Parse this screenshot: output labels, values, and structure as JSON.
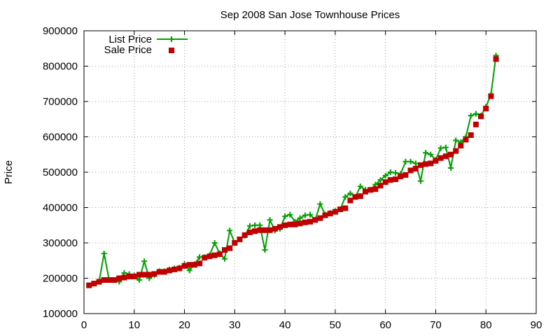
{
  "chart_data": {
    "type": "line",
    "title": "Sep 2008 San Jose Townhouse Prices",
    "xlabel": "",
    "ylabel": "Price",
    "xlim": [
      0,
      90
    ],
    "ylim": [
      100000,
      900000
    ],
    "xticks": [
      0,
      10,
      20,
      30,
      40,
      50,
      60,
      70,
      80,
      90
    ],
    "yticks": [
      100000,
      200000,
      300000,
      400000,
      500000,
      600000,
      700000,
      800000,
      900000
    ],
    "grid": true,
    "legend_position": "top-left",
    "x": [
      1,
      2,
      3,
      4,
      5,
      6,
      7,
      8,
      9,
      10,
      11,
      12,
      13,
      14,
      15,
      16,
      17,
      18,
      19,
      20,
      21,
      22,
      23,
      24,
      25,
      26,
      27,
      28,
      29,
      30,
      31,
      32,
      33,
      34,
      35,
      36,
      37,
      38,
      39,
      40,
      41,
      42,
      43,
      44,
      45,
      46,
      47,
      48,
      49,
      50,
      51,
      52,
      53,
      54,
      55,
      56,
      57,
      58,
      59,
      60,
      61,
      62,
      63,
      64,
      65,
      66,
      67,
      68,
      69,
      70,
      71,
      72,
      73,
      74,
      75,
      76,
      77,
      78,
      79,
      80,
      81,
      82
    ],
    "series": [
      {
        "name": "List Price",
        "color": "#00a000",
        "style": "line-plus",
        "values": [
          180000,
          185000,
          190000,
          270000,
          195000,
          195000,
          190000,
          215000,
          212000,
          208000,
          195000,
          248000,
          200000,
          210000,
          220000,
          220000,
          225000,
          228000,
          230000,
          240000,
          222000,
          240000,
          260000,
          260000,
          265000,
          300000,
          270000,
          255000,
          335000,
          300000,
          310000,
          320000,
          348000,
          350000,
          350000,
          280000,
          365000,
          335000,
          340000,
          375000,
          380000,
          360000,
          370000,
          378000,
          380000,
          365000,
          410000,
          380000,
          385000,
          390000,
          395000,
          430000,
          440000,
          430000,
          460000,
          450000,
          450000,
          465000,
          478000,
          490000,
          500000,
          498000,
          495000,
          530000,
          530000,
          525000,
          475000,
          555000,
          550000,
          535000,
          568000,
          570000,
          512000,
          590000,
          585000,
          600000,
          660000,
          665000,
          660000,
          685000,
          720000,
          830000
        ]
      },
      {
        "name": "Sale Price",
        "color": "#c00000",
        "style": "square-markers",
        "values": [
          180000,
          185000,
          190000,
          195000,
          195000,
          195000,
          200000,
          202000,
          205000,
          205000,
          210000,
          210000,
          210000,
          212000,
          218000,
          218000,
          222000,
          225000,
          228000,
          235000,
          238000,
          238000,
          242000,
          258000,
          262000,
          265000,
          268000,
          280000,
          285000,
          300000,
          310000,
          322000,
          330000,
          333000,
          336000,
          336000,
          336000,
          340000,
          345000,
          350000,
          352000,
          352000,
          355000,
          358000,
          360000,
          365000,
          370000,
          378000,
          383000,
          388000,
          395000,
          398000,
          420000,
          430000,
          432000,
          445000,
          450000,
          452000,
          462000,
          472000,
          478000,
          480000,
          488000,
          492000,
          505000,
          510000,
          520000,
          523000,
          525000,
          532000,
          540000,
          545000,
          550000,
          560000,
          575000,
          592000,
          605000,
          635000,
          658000,
          680000,
          715000,
          820000
        ]
      }
    ]
  }
}
